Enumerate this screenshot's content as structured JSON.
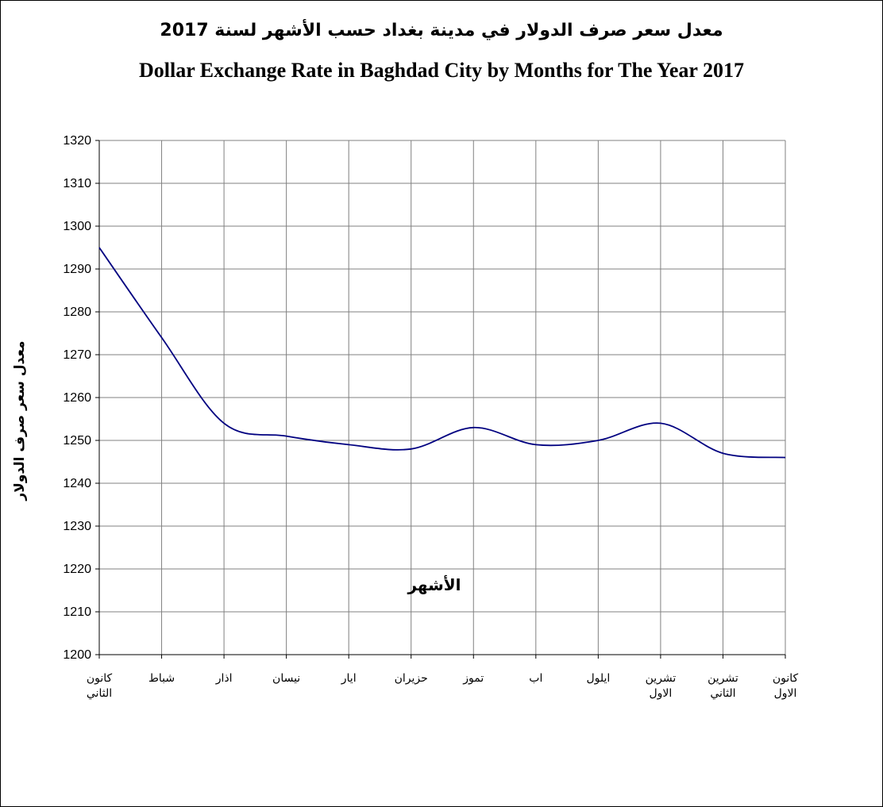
{
  "chart_data": {
    "type": "line",
    "title": "معدل سعر صرف الدولار في مدينة بغداد حسب الأشهر لسنة 2017",
    "subtitle": "Dollar Exchange Rate in Baghdad City by Months for The Year 2017",
    "xlabel": "الأشهر",
    "ylabel": "معدل سعر صرف الدولار",
    "categories": [
      [
        "كانون",
        "الثاني"
      ],
      [
        "شباط"
      ],
      [
        "اذار"
      ],
      [
        "نيسان"
      ],
      [
        "ايار"
      ],
      [
        "حزيران"
      ],
      [
        "تموز"
      ],
      [
        "اب"
      ],
      [
        "ايلول"
      ],
      [
        "تشرين",
        "الاول"
      ],
      [
        "تشرين",
        "الثاني"
      ],
      [
        "كانون",
        "الاول"
      ]
    ],
    "series": [
      {
        "values": [
          1295,
          1274,
          1254,
          1251,
          1249,
          1248,
          1253,
          1249,
          1250,
          1254,
          1247,
          1246
        ]
      }
    ],
    "ylim": [
      1200,
      1320
    ],
    "yticks": [
      1200,
      1210,
      1220,
      1230,
      1240,
      1250,
      1260,
      1270,
      1280,
      1290,
      1300,
      1310,
      1320
    ],
    "grid": true,
    "colors": {
      "line": "#000080",
      "grid": "#808080",
      "axis": "#000000"
    }
  }
}
